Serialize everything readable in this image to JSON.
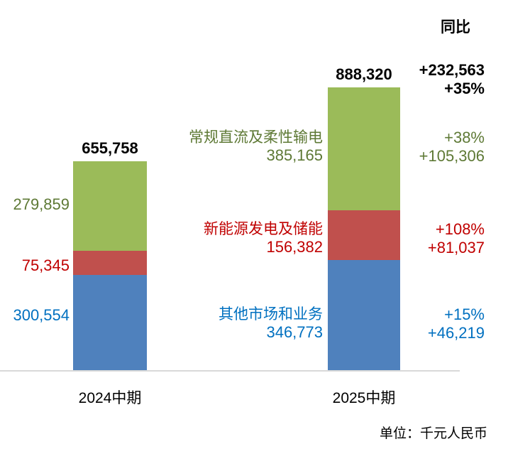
{
  "header": {
    "yoy_title": "同比"
  },
  "footer": {
    "unit_label": "单位：千元人民币"
  },
  "colors": {
    "bar_green": "#9bbb59",
    "bar_red": "#c0504d",
    "bar_blue": "#4f81bd",
    "text_green": "#5e7935",
    "text_red": "#c00000",
    "text_blue": "#0070c0",
    "axis_line": "#d9d9d9",
    "text_black": "#000000"
  },
  "chart_data": {
    "type": "bar",
    "stacked": true,
    "title": "",
    "unit": "千元人民币",
    "legend_position": "inline-labels",
    "grid": false,
    "ylim": [
      0,
      888320
    ],
    "categories": [
      "2024中期",
      "2025中期"
    ],
    "totals": {
      "values": [
        655758,
        888320
      ],
      "labels": [
        "655,758",
        "888,320"
      ]
    },
    "total_yoy": {
      "abs": "+232,563",
      "pct": "+35%"
    },
    "series": [
      {
        "name": "其他市场和业务",
        "color_key": "blue",
        "values": [
          300554,
          346773
        ],
        "labels": [
          "300,554",
          "346,773"
        ],
        "yoy_pct": "+15%",
        "yoy_abs": "+46,219"
      },
      {
        "name": "新能源发电及储能",
        "color_key": "red",
        "values": [
          75345,
          156382
        ],
        "labels": [
          "75,345",
          "156,382"
        ],
        "yoy_pct": "+108%",
        "yoy_abs": "+81,037"
      },
      {
        "name": "常规直流及柔性输电",
        "color_key": "green",
        "values": [
          279859,
          385165
        ],
        "labels": [
          "279,859",
          "385,165"
        ],
        "yoy_pct": "+38%",
        "yoy_abs": "+105,306"
      }
    ]
  }
}
